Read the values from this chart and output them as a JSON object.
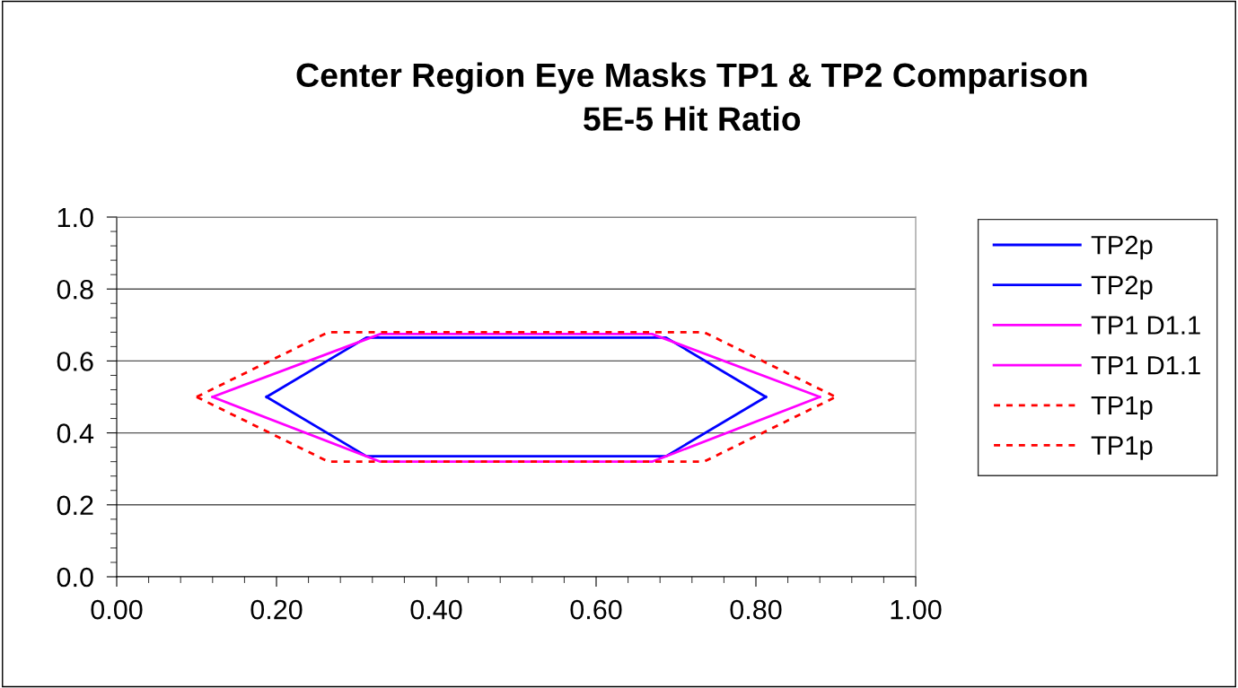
{
  "chart_data": {
    "type": "line",
    "title": "Center Region Eye Masks TP1 & TP2 Comparison\n5E-5 Hit Ratio",
    "series": [
      {
        "name": "TP2p",
        "color": "#0000ff",
        "line_style": "solid",
        "x": [
          0.1875,
          0.3125,
          0.6875,
          0.8125
        ],
        "values": [
          0.5,
          0.665,
          0.665,
          0.5
        ]
      },
      {
        "name": "TP2p",
        "color": "#0000ff",
        "line_style": "solid",
        "x": [
          0.1875,
          0.3125,
          0.6875,
          0.8125
        ],
        "values": [
          0.5,
          0.335,
          0.335,
          0.5
        ]
      },
      {
        "name": "TP1 D1.1",
        "color": "#ff00ff",
        "line_style": "solid",
        "x": [
          0.12,
          0.33,
          0.67,
          0.88
        ],
        "values": [
          0.5,
          0.675,
          0.675,
          0.5
        ]
      },
      {
        "name": "TP1 D1.1",
        "color": "#ff00ff",
        "line_style": "solid",
        "x": [
          0.12,
          0.33,
          0.67,
          0.88
        ],
        "values": [
          0.5,
          0.32,
          0.32,
          0.5
        ]
      },
      {
        "name": "TP1p",
        "color": "#ff0000",
        "line_style": "dotted",
        "x": [
          0.1,
          0.265,
          0.735,
          0.9
        ],
        "values": [
          0.5,
          0.68,
          0.68,
          0.5
        ]
      },
      {
        "name": "TP1p",
        "color": "#ff0000",
        "line_style": "dotted",
        "x": [
          0.1,
          0.265,
          0.735,
          0.9
        ],
        "values": [
          0.5,
          0.32,
          0.32,
          0.5
        ]
      }
    ],
    "xlim": [
      0,
      1
    ],
    "ylim": [
      0,
      1
    ],
    "xticks": [
      {
        "value": 0,
        "label": "0.00"
      },
      {
        "value": 0.2,
        "label": "0.20"
      },
      {
        "value": 0.4,
        "label": "0.40"
      },
      {
        "value": 0.6,
        "label": "0.60"
      },
      {
        "value": 0.8,
        "label": "0.80"
      },
      {
        "value": 1,
        "label": "1.00"
      }
    ],
    "yticks": [
      {
        "value": 0,
        "label": "0.0"
      },
      {
        "value": 0.2,
        "label": "0.2"
      },
      {
        "value": 0.4,
        "label": "0.4"
      },
      {
        "value": 0.6,
        "label": "0.6"
      },
      {
        "value": 0.8,
        "label": "0.8"
      },
      {
        "value": 1,
        "label": "1.0"
      }
    ],
    "grid": "y",
    "legend": "right",
    "marker": "none"
  }
}
